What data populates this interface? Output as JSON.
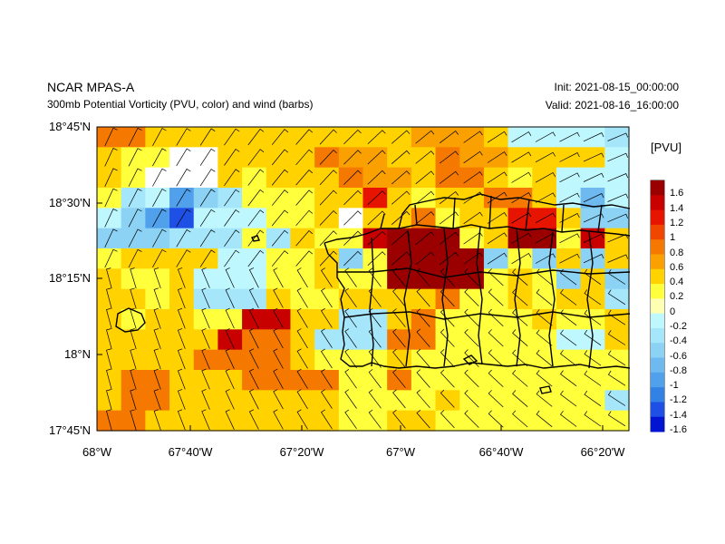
{
  "header": {
    "model": "NCAR MPAS-A",
    "description": "300mb Potential Vorticity (PVU, color) and wind (barbs)",
    "init": "Init: 2021-08-15_00:00:00",
    "valid": "Valid: 2021-08-16_16:00:00"
  },
  "axes": {
    "lat_labels": [
      "18°45'N",
      "18°30'N",
      "18°15'N",
      "18°N",
      "17°45'N"
    ],
    "lon_labels": [
      "68°W",
      "67°40'W",
      "67°20'W",
      "67°W",
      "66°40'W",
      "66°20'W"
    ]
  },
  "colorbar": {
    "title": "[PVU]",
    "labels": [
      "1.6",
      "1.4",
      "1.2",
      "1",
      "0.8",
      "0.6",
      "0.4",
      "0.2",
      "0",
      "-0.2",
      "-0.4",
      "-0.6",
      "-0.8",
      "-1",
      "-1.2",
      "-1.4",
      "-1.6"
    ],
    "colors": [
      "#9b0000",
      "#c80000",
      "#e61400",
      "#f04600",
      "#f57800",
      "#faa000",
      "#ffd200",
      "#ffff3c",
      "#ffffb4",
      "#bff7ff",
      "#a5e6fa",
      "#8cd2f5",
      "#6eb9f0",
      "#50a0eb",
      "#3282e6",
      "#1e50e6",
      "#0014d2"
    ]
  },
  "map": {
    "pv_grid": [
      "2233331111111ppp1ccccd",
      "3bbaa33112pp332pp1333c",
      "1baaa3b1332pp3221b3ccc",
      "bdcfedbbb1303b11221c8c",
      "cefhcccbb36332b33003ee",
      "eeedddbd3bb4555b355b43",
      "b3333ccbb3ebq555ebe3e3",
      "1bb3cccbb1bb5qq5b3be3e",
      "11b1ddd1bb31112bb3b33d",
      "1b11bb4433dd12bbbb3bb3",
      "111114223ddd22bbbbbcc3",
      "111122223bbb1bbbbbbbbb",
      "1221112222bb2bbbbbbbbb",
      "1223333333bbbb1bbbbbbd",
      "2233333333bb31bbbbbbbb"
    ],
    "pv_key": {
      "p": "#faa000",
      "q": "#9b0000",
      "2": "#f57800",
      "3": "#ffd200",
      "4": "#c80000",
      "5": "#9b0000",
      "1": "#ffd200",
      "b": "#ffff3c",
      "c": "#bff7ff",
      "d": "#a5e6fa",
      "e": "#8cd2f5",
      "f": "#50a0eb",
      "h": "#1e50e6",
      "8": "#6eb9f0",
      "0": "#e61400"
    }
  }
}
